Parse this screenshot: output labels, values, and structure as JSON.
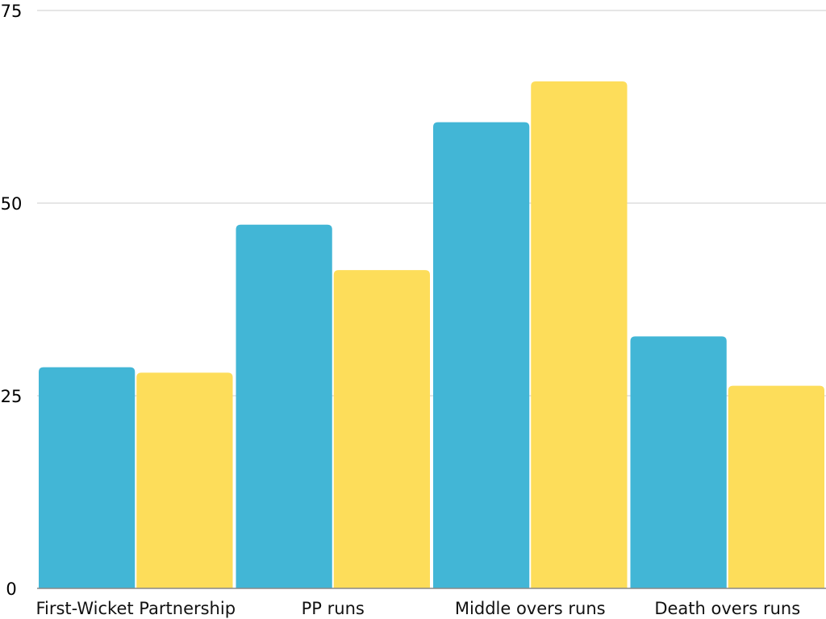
{
  "chart_data": {
    "type": "bar",
    "categories": [
      "First-Wicket Partnership",
      "PP runs",
      "Middle overs runs",
      "Death overs runs"
    ],
    "series": [
      {
        "values": [
          28.7,
          47.2,
          60.5,
          32.7
        ],
        "color": "#42b6d6"
      },
      {
        "values": [
          28.0,
          41.3,
          65.8,
          26.3
        ],
        "color": "#fddd5a"
      }
    ],
    "yticks": [
      "0",
      "25",
      "50",
      "75"
    ],
    "ylim": [
      0,
      75
    ],
    "grid": true,
    "legend": "none"
  }
}
